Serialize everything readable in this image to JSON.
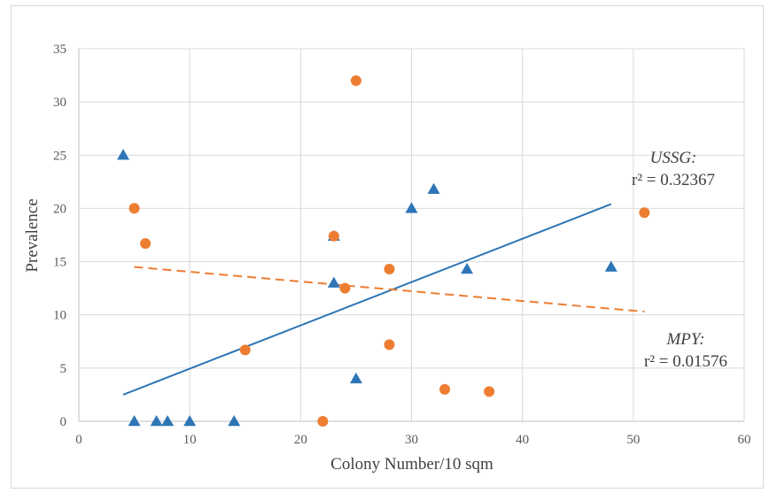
{
  "chart_data": {
    "type": "scatter",
    "title": "",
    "xlabel": "Colony Number/10 sqm",
    "ylabel": "Prevalence",
    "xlim": [
      0,
      60
    ],
    "ylim": [
      0,
      35
    ],
    "x_ticks": [
      0,
      10,
      20,
      30,
      40,
      50,
      60
    ],
    "y_ticks": [
      0,
      5,
      10,
      15,
      20,
      25,
      30,
      35
    ],
    "grid": true,
    "legend": "none",
    "series": [
      {
        "marker": "triangle",
        "color": "#2e75b6",
        "points": [
          [
            4,
            25
          ],
          [
            5,
            0
          ],
          [
            7,
            0
          ],
          [
            8,
            0
          ],
          [
            10,
            0
          ],
          [
            14,
            0
          ],
          [
            23,
            17.4
          ],
          [
            23,
            13
          ],
          [
            25,
            4
          ],
          [
            30,
            20
          ],
          [
            32,
            21.8
          ],
          [
            35,
            14.3
          ],
          [
            48,
            14.5
          ]
        ]
      },
      {
        "marker": "circle",
        "color": "#ed7d31",
        "points": [
          [
            5,
            20
          ],
          [
            6,
            16.7
          ],
          [
            15,
            6.7
          ],
          [
            22,
            0
          ],
          [
            23,
            17.4
          ],
          [
            24,
            12.5
          ],
          [
            25,
            32
          ],
          [
            28,
            14.3
          ],
          [
            28,
            7.2
          ],
          [
            33,
            3
          ],
          [
            37,
            2.8
          ],
          [
            51,
            19.6
          ]
        ]
      }
    ],
    "trendlines": [
      {
        "series_index": 0,
        "style": "solid",
        "color": "#2e75b6",
        "x": [
          4,
          48
        ],
        "y": [
          2.5,
          20.4
        ]
      },
      {
        "series_index": 1,
        "style": "dashed",
        "color": "#ed7d31",
        "x": [
          5,
          51
        ],
        "y": [
          14.5,
          10.3
        ]
      }
    ],
    "annotations": [
      {
        "name": "USSG:",
        "r2": "r² = 0.32367",
        "series_index": 0
      },
      {
        "name": "MPY:",
        "r2": "r² = 0.01576",
        "series_index": 1
      }
    ]
  }
}
